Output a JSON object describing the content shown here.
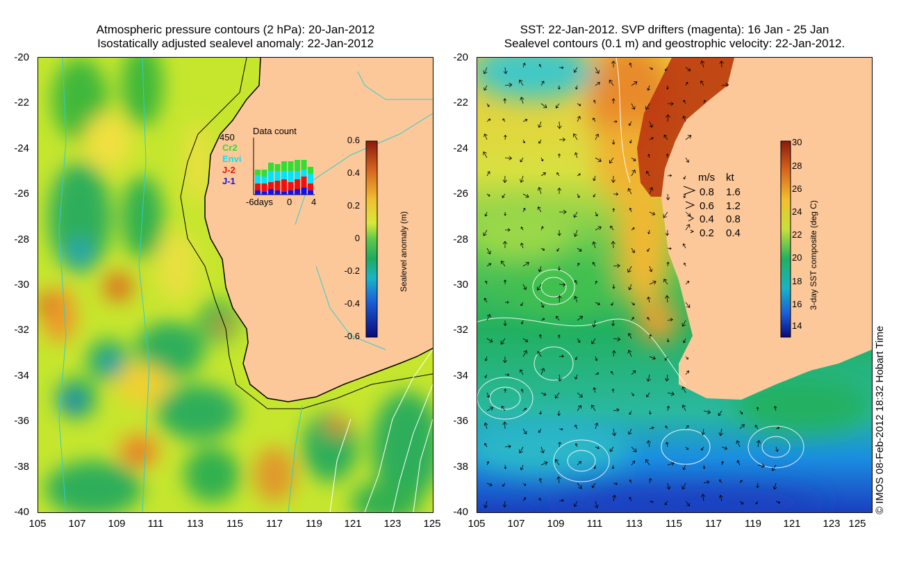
{
  "left_panel": {
    "title_line1": "Atmospheric pressure contours (2 hPa): 20-Jan-2012",
    "title_line2": "Isostatically adjusted sealevel anomaly: 22-Jan-2012",
    "y_ticks": [
      "-20",
      "-22",
      "-24",
      "-26",
      "-28",
      "-30",
      "-32",
      "-34",
      "-36",
      "-38",
      "-40"
    ],
    "x_ticks": [
      "105",
      "107",
      "109",
      "111",
      "113",
      "115",
      "117",
      "119",
      "121",
      "123",
      "125"
    ],
    "inset": {
      "title": "Data count",
      "max_label": "450",
      "series": [
        {
          "name": "Cr2",
          "color": "#33dd33"
        },
        {
          "name": "Envi",
          "color": "#00e5ff"
        },
        {
          "name": "J-2",
          "color": "#ee1111"
        },
        {
          "name": "J-1",
          "color": "#1111ee"
        }
      ],
      "x_labels": [
        "-6days",
        "0",
        "4"
      ]
    },
    "colorbar": {
      "label": "Sealevel anomaly (m)",
      "ticks": [
        "0.6",
        "0.4",
        "0.2",
        "0",
        "-0.2",
        "-0.4",
        "-0.6"
      ]
    }
  },
  "right_panel": {
    "title_line1": "SST: 22-Jan-2012. SVP drifters (magenta): 16 Jan - 25 Jan",
    "title_line2": "Sealevel contours (0.1 m) and geostrophic velocity: 22-Jan-2012.",
    "y_ticks": [
      "-20",
      "-22",
      "-24",
      "-26",
      "-28",
      "-30",
      "-32",
      "-34",
      "-36",
      "-38",
      "-40"
    ],
    "x_ticks": [
      "105",
      "107",
      "109",
      "111",
      "113",
      "115",
      "117",
      "119",
      "121",
      "123",
      "125"
    ],
    "velocity_legend": {
      "header_ms": "m/s",
      "header_kt": "kt",
      "rows": [
        {
          "ms": "0.8",
          "kt": "1.6"
        },
        {
          "ms": "0.6",
          "kt": "1.2"
        },
        {
          "ms": "0.4",
          "kt": "0.8"
        },
        {
          "ms": "0.2",
          "kt": "0.4"
        }
      ]
    },
    "colorbar": {
      "label": "3-day SST composite (deg C)",
      "ticks": [
        "30",
        "28",
        "26",
        "24",
        "22",
        "20",
        "18",
        "16",
        "14"
      ]
    }
  },
  "credit": "© IMOS 08-Feb-2012 18:32 Hobart Time"
}
